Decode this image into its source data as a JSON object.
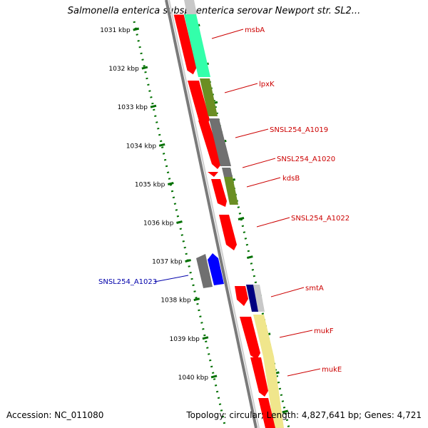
{
  "title": "Salmonella enterica subsp. enterica serovar Newport str. SL2...",
  "footer": {
    "accession": "Accession: NC_011080",
    "topology": "Topology: circular; Length: 4,827,641 bp; Genes: 4,721"
  },
  "colors": {
    "scale": "#007000",
    "forward_label": "#cc0000",
    "reverse_label": "#0000aa",
    "cds_red": "#ff0000",
    "blue": "#0000ff",
    "dark_blue": "#000080",
    "green_cds": "#6b8e23",
    "gray": "#707070",
    "light_gray": "#c8c8c8",
    "teal": "#33ffaa",
    "khaki": "#f0e68c"
  },
  "scale_ticks": [
    {
      "label": "1031 kbp"
    },
    {
      "label": "1032 kbp"
    },
    {
      "label": "1033 kbp"
    },
    {
      "label": "1034 kbp"
    },
    {
      "label": "1035 kbp"
    },
    {
      "label": "1036 kbp"
    },
    {
      "label": "1037 kbp"
    },
    {
      "label": "1038 kbp"
    },
    {
      "label": "1039 kbp"
    },
    {
      "label": "1040 kbp"
    }
  ],
  "gene_labels": [
    {
      "name": "msbA",
      "strand": "forward"
    },
    {
      "name": "lpxK",
      "strand": "forward"
    },
    {
      "name": "SNSL254_A1019",
      "strand": "forward"
    },
    {
      "name": "SNSL254_A1020",
      "strand": "forward"
    },
    {
      "name": "kdsB",
      "strand": "forward"
    },
    {
      "name": "SNSL254_A1022",
      "strand": "forward"
    },
    {
      "name": "SNSL254_A1023",
      "strand": "reverse"
    },
    {
      "name": "smtA",
      "strand": "forward"
    },
    {
      "name": "mukF",
      "strand": "forward"
    },
    {
      "name": "mukE",
      "strand": "forward"
    }
  ]
}
